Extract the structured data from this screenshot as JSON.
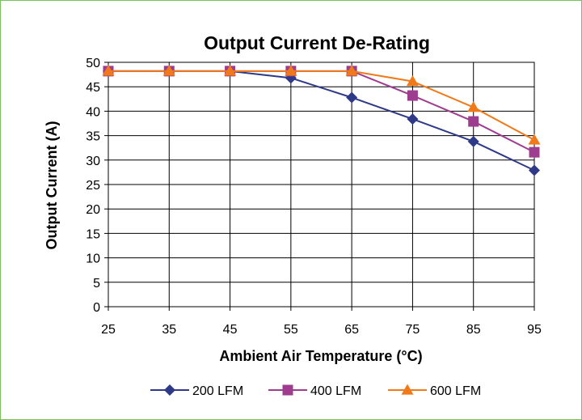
{
  "chart_data": {
    "type": "line",
    "title": "Output Current De-Rating",
    "xlabel": "Ambient Air Temperature (°C)",
    "ylabel": "Output Current (A)",
    "x": [
      25,
      35,
      45,
      55,
      65,
      75,
      85,
      95
    ],
    "x_tick_labels": [
      "25",
      "35",
      "45",
      "55",
      "65",
      "75",
      "85",
      "95"
    ],
    "ylim": [
      0,
      50
    ],
    "y_ticks": [
      0,
      5,
      10,
      15,
      20,
      25,
      30,
      35,
      40,
      45,
      50
    ],
    "y_tick_labels": [
      "0",
      "5",
      "10",
      "15",
      "20",
      "25",
      "30",
      "35",
      "40",
      "45",
      "50"
    ],
    "grid": true,
    "legend_position": "bottom",
    "series": [
      {
        "name": "200 LFM",
        "values": [
          48.2,
          48.2,
          48.2,
          46.8,
          42.8,
          38.4,
          33.8,
          27.9
        ],
        "color": "#2e3a87",
        "marker": "diamond"
      },
      {
        "name": "400 LFM",
        "values": [
          48.2,
          48.2,
          48.2,
          48.2,
          48.2,
          43.2,
          37.9,
          31.6
        ],
        "color": "#9e3d8f",
        "marker": "square"
      },
      {
        "name": "600 LFM",
        "values": [
          48.2,
          48.2,
          48.2,
          48.2,
          48.2,
          46.1,
          40.8,
          34.1
        ],
        "color": "#f07a1a",
        "marker": "triangle"
      }
    ]
  }
}
